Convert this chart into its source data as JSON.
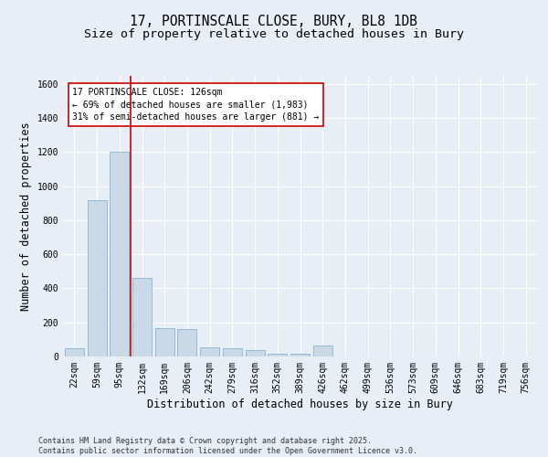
{
  "title_line1": "17, PORTINSCALE CLOSE, BURY, BL8 1DB",
  "title_line2": "Size of property relative to detached houses in Bury",
  "xlabel": "Distribution of detached houses by size in Bury",
  "ylabel": "Number of detached properties",
  "categories": [
    "22sqm",
    "59sqm",
    "95sqm",
    "132sqm",
    "169sqm",
    "206sqm",
    "242sqm",
    "279sqm",
    "316sqm",
    "352sqm",
    "389sqm",
    "426sqm",
    "462sqm",
    "499sqm",
    "536sqm",
    "573sqm",
    "609sqm",
    "646sqm",
    "683sqm",
    "719sqm",
    "756sqm"
  ],
  "values": [
    50,
    920,
    1200,
    460,
    165,
    160,
    55,
    50,
    35,
    15,
    15,
    65,
    0,
    0,
    0,
    0,
    0,
    0,
    0,
    0,
    0
  ],
  "bar_color": "#c9d9e8",
  "bar_edge_color": "#7aaac8",
  "vline_color": "#cc0000",
  "annotation_text": "17 PORTINSCALE CLOSE: 126sqm\n← 69% of detached houses are smaller (1,983)\n31% of semi-detached houses are larger (881) →",
  "ylim": [
    0,
    1650
  ],
  "yticks": [
    0,
    200,
    400,
    600,
    800,
    1000,
    1200,
    1400,
    1600
  ],
  "bg_color": "#e8eef5",
  "plot_bg_color": "#e8eef5",
  "footer_text": "Contains HM Land Registry data © Crown copyright and database right 2025.\nContains public sector information licensed under the Open Government Licence v3.0.",
  "title_fontsize": 10.5,
  "subtitle_fontsize": 9.5,
  "axis_label_fontsize": 8.5,
  "tick_fontsize": 7,
  "annotation_fontsize": 7,
  "footer_fontsize": 6
}
